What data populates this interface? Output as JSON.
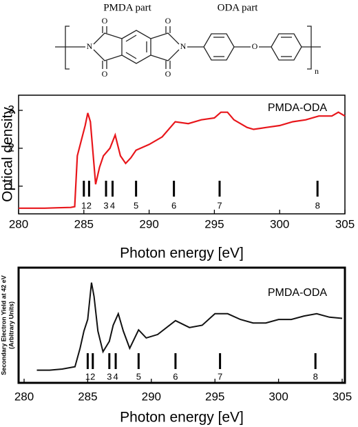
{
  "structure": {
    "parts": [
      "PMDA part",
      "ODA part"
    ],
    "atoms": [
      "O",
      "O",
      "N",
      "N",
      "O",
      "O",
      "O"
    ],
    "repeat": "n"
  },
  "chart_data": [
    {
      "type": "line",
      "y_label": "Optical density",
      "x_label": "Photon energy [eV]",
      "annotation": "PMDA-ODA",
      "xlim": [
        280,
        305
      ],
      "xticks": [
        280,
        285,
        290,
        295,
        300,
        305
      ],
      "ylim": [
        0.27,
        3.4
      ],
      "yticks": [
        1,
        2,
        3
      ],
      "series": [
        {
          "color": "#e8161b",
          "x": [
            280,
            281,
            282,
            283,
            284,
            284.3,
            284.5,
            284.8,
            285.1,
            285.3,
            285.5,
            285.9,
            286.2,
            286.5,
            287.0,
            287.4,
            287.8,
            288.2,
            288.6,
            289.0,
            290.0,
            291.0,
            292.0,
            293.0,
            294.0,
            295.0,
            295.5,
            296.0,
            296.5,
            297.5,
            298.0,
            299.0,
            300.0,
            301.0,
            302.0,
            303.0,
            304.0,
            304.5,
            305.0
          ],
          "values": [
            0.42,
            0.42,
            0.42,
            0.43,
            0.44,
            0.46,
            1.8,
            2.2,
            2.6,
            2.93,
            2.7,
            1.05,
            1.5,
            1.8,
            2.0,
            2.35,
            1.8,
            1.6,
            1.75,
            1.95,
            2.1,
            2.3,
            2.7,
            2.65,
            2.75,
            2.8,
            2.95,
            2.95,
            2.75,
            2.55,
            2.5,
            2.55,
            2.6,
            2.7,
            2.75,
            2.85,
            2.85,
            2.95,
            2.85
          ]
        }
      ],
      "markers": {
        "x": [
          285.0,
          285.4,
          286.7,
          287.2,
          289.0,
          291.9,
          295.4,
          302.9
        ],
        "labels": [
          "1",
          "2",
          "3",
          "4",
          "5",
          "6",
          "7",
          "8"
        ]
      }
    },
    {
      "type": "line",
      "y_label": [
        "Secondary Electron Yield at 42 eV",
        "(Arbitrary Units)"
      ],
      "x_label": "Photon energy [eV]",
      "annotation": "PMDA-ODA",
      "xlim": [
        280,
        305
      ],
      "xticks": [
        280,
        285,
        290,
        295,
        300,
        305
      ],
      "ylim": [
        0,
        1
      ],
      "series": [
        {
          "color": "#111111",
          "x": [
            281,
            282,
            283,
            284,
            284.4,
            284.7,
            285.0,
            285.3,
            285.5,
            285.8,
            286.2,
            286.7,
            287.0,
            287.4,
            287.8,
            288.3,
            289.0,
            289.6,
            290.5,
            291.9,
            293.0,
            294.0,
            295.0,
            296.0,
            297.0,
            298.0,
            299.0,
            300.0,
            301.0,
            302.0,
            303.0,
            304.0,
            305.0
          ],
          "values": [
            0.11,
            0.11,
            0.12,
            0.14,
            0.3,
            0.45,
            0.55,
            0.87,
            0.75,
            0.45,
            0.27,
            0.36,
            0.5,
            0.6,
            0.45,
            0.3,
            0.46,
            0.39,
            0.42,
            0.54,
            0.48,
            0.5,
            0.6,
            0.6,
            0.55,
            0.52,
            0.52,
            0.55,
            0.55,
            0.58,
            0.6,
            0.57,
            0.56
          ]
        }
      ],
      "markers": {
        "x": [
          285.0,
          285.4,
          286.7,
          287.2,
          289.0,
          291.9,
          295.4,
          302.9
        ],
        "labels": [
          "1",
          "2",
          "3",
          "4",
          "5",
          "6",
          "7",
          "8"
        ]
      }
    }
  ]
}
